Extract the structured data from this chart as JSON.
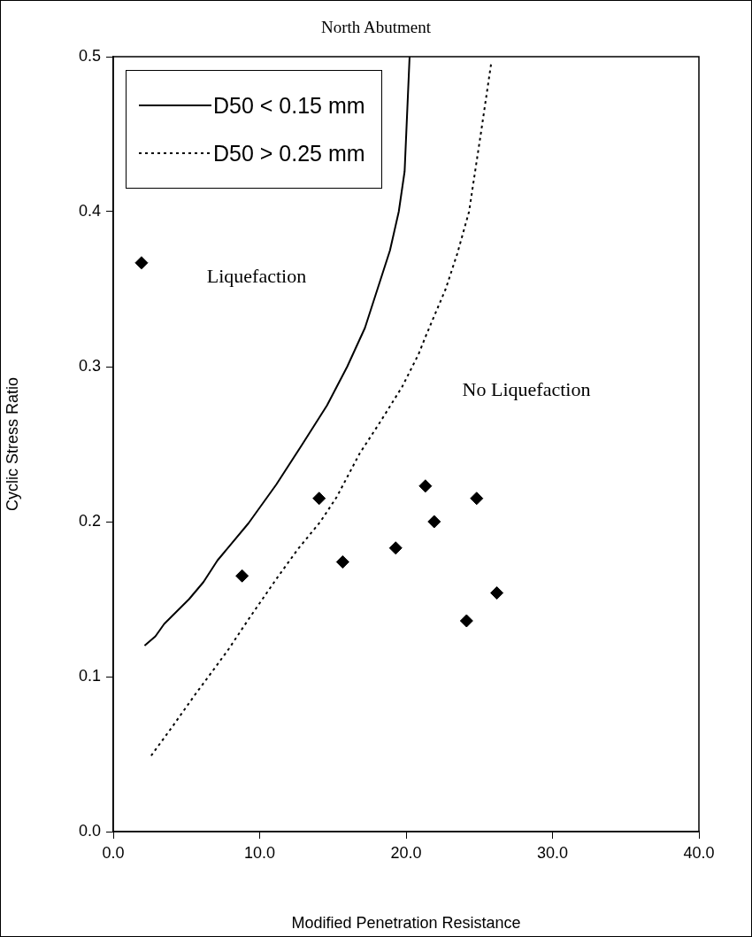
{
  "chart_data": {
    "type": "scatter",
    "title": "North Abutment",
    "xlabel": "Modified Penetration Resistance",
    "ylabel": "Cyclic Stress Ratio",
    "annotations": [
      "Liquefaction",
      "No Liquefaction"
    ],
    "xlim": [
      0,
      40
    ],
    "ylim": [
      0,
      0.5
    ],
    "xticks": [
      {
        "value": 0,
        "label": "0.0"
      },
      {
        "value": 10,
        "label": "10.0"
      },
      {
        "value": 20,
        "label": "20.0"
      },
      {
        "value": 30,
        "label": "30.0"
      },
      {
        "value": 40,
        "label": "40.0"
      }
    ],
    "yticks": [
      {
        "value": 0,
        "label": "0.0"
      },
      {
        "value": 0.1,
        "label": "0.1"
      },
      {
        "value": 0.2,
        "label": "0.2"
      },
      {
        "value": 0.3,
        "label": "0.3"
      },
      {
        "value": 0.4,
        "label": "0.4"
      },
      {
        "value": 0.5,
        "label": "0.5"
      }
    ],
    "grid": false,
    "legend": "top left",
    "series": [
      {
        "name": "D50 < 0.15 mm",
        "type": "line",
        "line_style": "solid",
        "marker": "none",
        "color": "#000000",
        "x": [
          2.14,
          2.88,
          3.48,
          5.18,
          6.16,
          7.12,
          9.24,
          11.14,
          12.92,
          14.6,
          15.98,
          17.19,
          18.9,
          19.5,
          19.9,
          20.24
        ],
        "values": [
          0.12,
          0.126,
          0.134,
          0.15,
          0.161,
          0.175,
          0.199,
          0.224,
          0.25,
          0.275,
          0.3,
          0.325,
          0.375,
          0.4,
          0.426,
          0.5
        ]
      },
      {
        "name": "D50 > 0.25 mm",
        "type": "line",
        "line_style": "dotted",
        "marker": "none",
        "color": "#000000",
        "x": [
          2.59,
          4.06,
          5.56,
          7.05,
          7.9,
          9.24,
          11.14,
          12.59,
          14.15,
          15.27,
          16.83,
          18.28,
          19.73,
          20.85,
          21.4,
          22.7,
          23.5,
          24.3,
          25.1,
          25.8
        ],
        "values": [
          0.049,
          0.068,
          0.088,
          0.107,
          0.118,
          0.137,
          0.163,
          0.182,
          0.2,
          0.216,
          0.244,
          0.265,
          0.287,
          0.308,
          0.321,
          0.35,
          0.373,
          0.4,
          0.45,
          0.495
        ]
      },
      {
        "marker": "diamond",
        "color": "#000000",
        "x": [
          1.93,
          8.8,
          14.06,
          15.67,
          19.29,
          21.32,
          21.92,
          24.82,
          24.13,
          26.2
        ],
        "values": [
          0.367,
          0.165,
          0.215,
          0.174,
          0.183,
          0.223,
          0.2,
          0.215,
          0.136,
          0.154
        ]
      }
    ]
  }
}
